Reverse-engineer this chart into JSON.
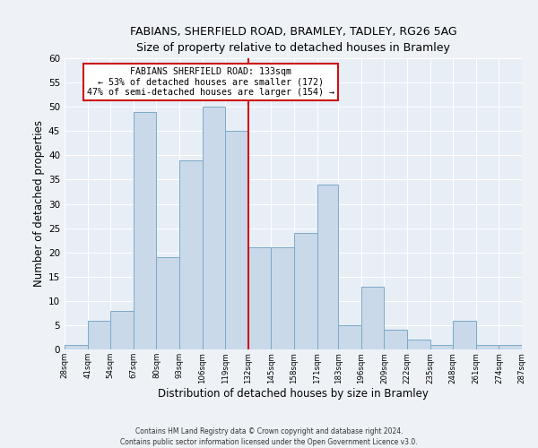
{
  "title1": "FABIANS, SHERFIELD ROAD, BRAMLEY, TADLEY, RG26 5AG",
  "title2": "Size of property relative to detached houses in Bramley",
  "xlabel": "Distribution of detached houses by size in Bramley",
  "ylabel": "Number of detached properties",
  "bin_edges": [
    28,
    41,
    54,
    67,
    80,
    93,
    106,
    119,
    132,
    145,
    158,
    171,
    183,
    196,
    209,
    222,
    235,
    248,
    261,
    274,
    287
  ],
  "bin_heights": [
    1,
    6,
    8,
    49,
    19,
    39,
    50,
    45,
    21,
    21,
    24,
    34,
    5,
    13,
    4,
    2,
    1,
    6,
    1,
    1
  ],
  "tick_labels": [
    "28sqm",
    "41sqm",
    "54sqm",
    "67sqm",
    "80sqm",
    "93sqm",
    "106sqm",
    "119sqm",
    "132sqm",
    "145sqm",
    "158sqm",
    "171sqm",
    "183sqm",
    "196sqm",
    "209sqm",
    "222sqm",
    "235sqm",
    "248sqm",
    "261sqm",
    "274sqm",
    "287sqm"
  ],
  "bar_face_color": "#c9d9ea",
  "bar_edge_color": "#7aaac8",
  "vline_x": 132,
  "vline_color": "#cc1111",
  "annotation_title": "FABIANS SHERFIELD ROAD: 133sqm",
  "annotation_line2": "← 53% of detached houses are smaller (172)",
  "annotation_line3": "47% of semi-detached houses are larger (154) →",
  "annotation_box_edge_color": "#cc1111",
  "annotation_box_face_color": "#ffffff",
  "ylim": [
    0,
    60
  ],
  "yticks": [
    0,
    5,
    10,
    15,
    20,
    25,
    30,
    35,
    40,
    45,
    50,
    55,
    60
  ],
  "footnote1": "Contains HM Land Registry data © Crown copyright and database right 2024.",
  "footnote2": "Contains public sector information licensed under the Open Government Licence v3.0.",
  "bg_color": "#eef2f7",
  "grid_color": "#ffffff",
  "plot_area_color": "#e8eef5"
}
